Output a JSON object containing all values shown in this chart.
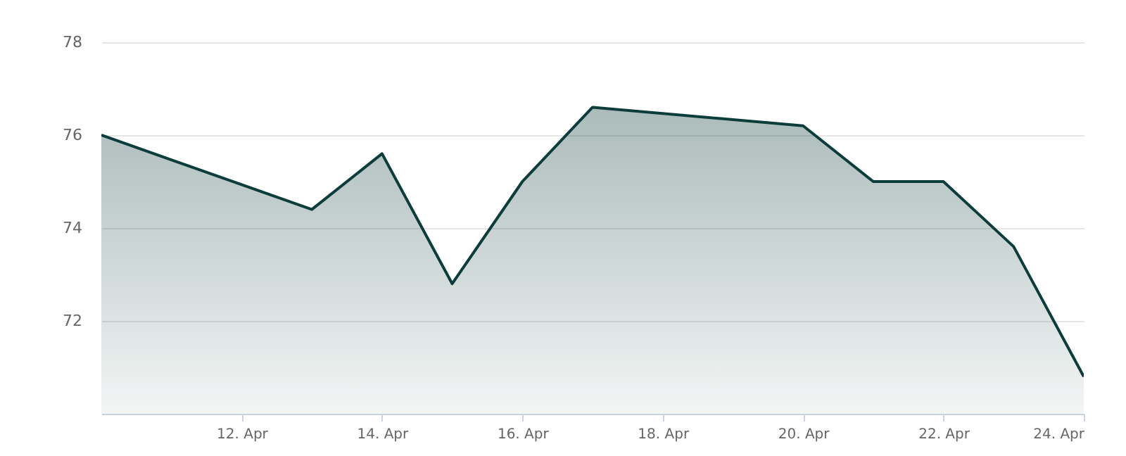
{
  "chart_data": {
    "type": "area",
    "x": [
      "--04-10",
      "--04-13",
      "--04-14",
      "--04-15",
      "--04-16",
      "--04-17",
      "--04-20",
      "--04-21",
      "--04-22",
      "--04-23",
      "--04-24"
    ],
    "series": [
      {
        "color": "#0d3d3a",
        "values": [
          76.0,
          74.4,
          75.6,
          72.8,
          75.0,
          76.6,
          76.2,
          75.0,
          75.0,
          73.6,
          70.8
        ]
      }
    ],
    "xlim": [
      "--04-10",
      "--04-24"
    ],
    "xticks": [
      {
        "value": "--04-12",
        "label": "12. Apr"
      },
      {
        "value": "--04-14",
        "label": "14. Apr"
      },
      {
        "value": "--04-16",
        "label": "16. Apr"
      },
      {
        "value": "--04-18",
        "label": "18. Apr"
      },
      {
        "value": "--04-20",
        "label": "20. Apr"
      },
      {
        "value": "--04-22",
        "label": "22. Apr"
      },
      {
        "value": "--04-24",
        "label": "24. Apr"
      }
    ],
    "ylim": [
      70,
      78
    ],
    "yticks": [
      72,
      74,
      76,
      78
    ],
    "grid": "y"
  }
}
